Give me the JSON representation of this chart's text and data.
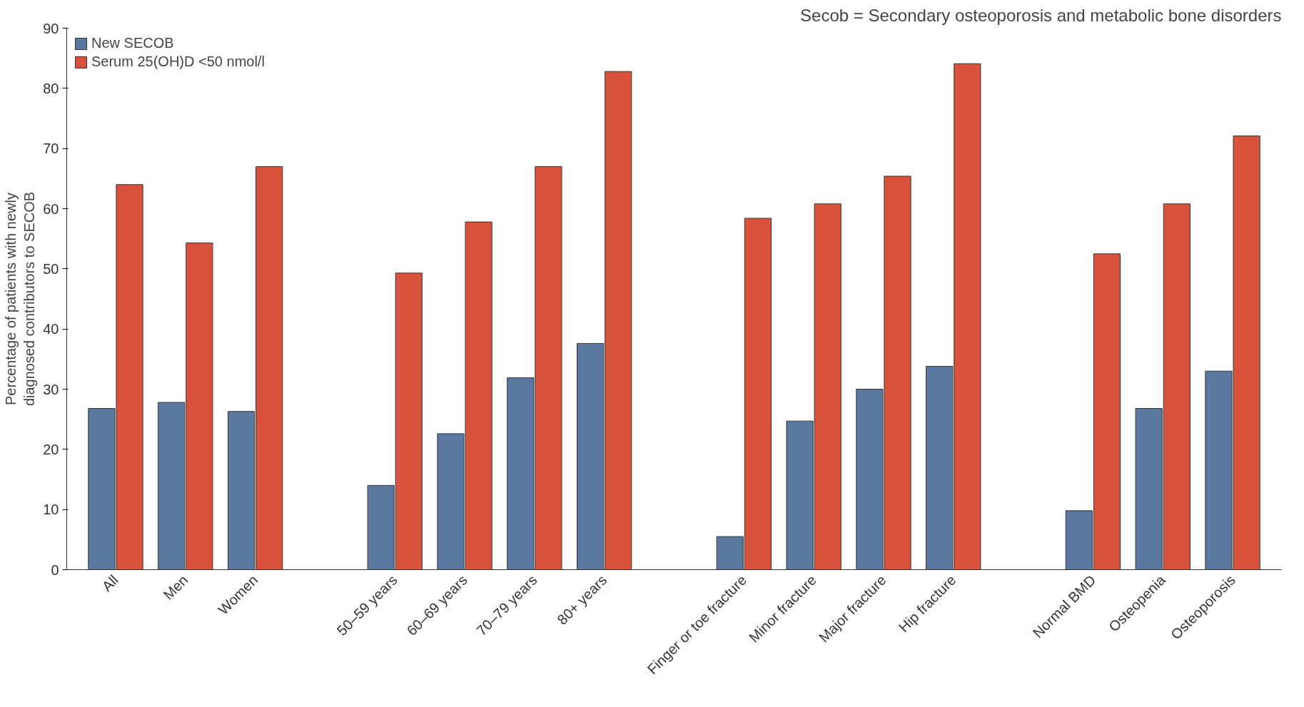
{
  "chart_data": {
    "type": "bar",
    "ylabel": "Percentage of patients with newly\ndiagnosed contributors to SECOB",
    "annotations": [
      "Secob = Secondary osteoporosis and metabolic bone disorders"
    ],
    "categories": [
      "All",
      "Men",
      "Women",
      null,
      "50–59 years",
      "60–69 years",
      "70–79 years",
      "80+ years",
      null,
      "Finger or toe fracture",
      "Minor fracture",
      "Major fracture",
      "Hip fracture",
      null,
      "Normal BMD",
      "Osteopenia",
      "Osteoporosis"
    ],
    "series": [
      {
        "name": "New SECOB",
        "color": "#5a78a0",
        "values": [
          26.8,
          27.8,
          26.3,
          null,
          14.0,
          22.6,
          31.9,
          37.6,
          null,
          5.5,
          24.7,
          30.0,
          33.8,
          null,
          9.8,
          26.8,
          33.0
        ]
      },
      {
        "name": "Serum 25(OH)D <50 nmol/l",
        "color": "#d9533c",
        "values": [
          64.0,
          54.3,
          67.0,
          null,
          49.3,
          57.8,
          67.0,
          82.8,
          null,
          58.4,
          60.8,
          65.4,
          84.1,
          null,
          52.5,
          60.8,
          72.1
        ]
      }
    ],
    "ylim": [
      0,
      90
    ],
    "yticks": [
      0,
      10,
      20,
      30,
      40,
      50,
      60,
      70,
      80,
      90
    ],
    "grid": false,
    "legend": "top left"
  }
}
